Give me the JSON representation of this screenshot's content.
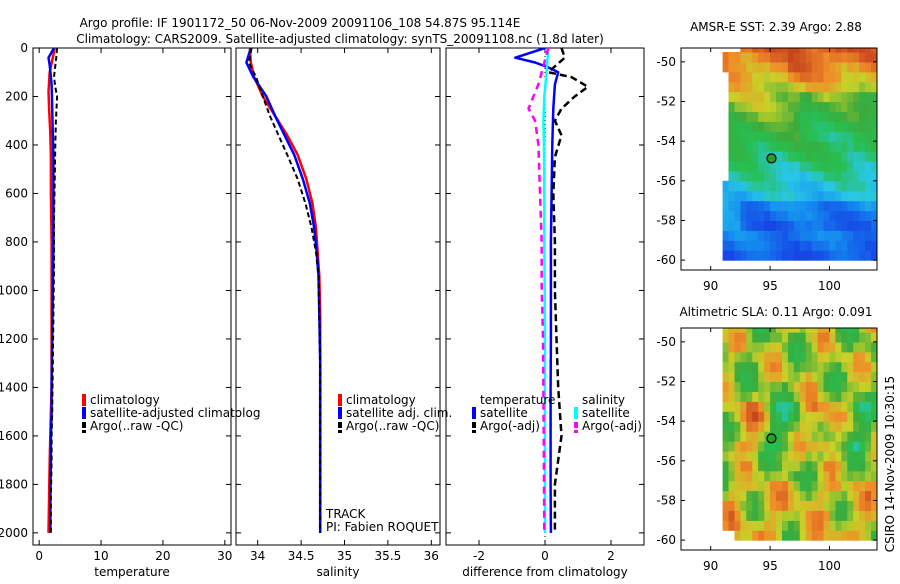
{
  "header": {
    "line1": "Argo profile: IF 1901172_50 06-Nov-2009 20091106_108 54.87S 95.114E",
    "line2": "Climatology: CARS2009. Satellite-adjusted climatology: synTS_20091108.nc (1.8d later)"
  },
  "colors": {
    "climatology": "#ff0000",
    "satellite": "#0000ff",
    "argo": "#000000",
    "satellite_salinity": "#00ffff",
    "argo_adj_salinity": "#ff00ff"
  },
  "footer": {
    "credit": "CSIRO 14-Nov-2009 10:30:15"
  },
  "chart_data": [
    {
      "id": "temperature",
      "type": "line",
      "xlabel": "temperature",
      "ylabel": "",
      "xlim": [
        -1,
        31
      ],
      "ylim": [
        2050,
        0
      ],
      "xticks": [
        0,
        10,
        20,
        30
      ],
      "yticks": [
        0,
        200,
        400,
        600,
        800,
        1000,
        1200,
        1400,
        1600,
        1800,
        2000
      ],
      "series": [
        {
          "name": "climatology",
          "color": "#ff0000",
          "dash": "",
          "width": 2.5,
          "x": [
            2.5,
            2.2,
            1.7,
            1.5,
            1.6,
            1.8,
            1.9,
            1.9,
            2.0,
            2.0,
            2.0,
            2.0,
            1.9,
            1.8,
            1.7,
            1.6,
            1.5
          ],
          "y": [
            0,
            40,
            100,
            180,
            250,
            350,
            450,
            600,
            800,
            1000,
            1200,
            1400,
            1500,
            1600,
            1700,
            1850,
            2000
          ]
        },
        {
          "name": "satellite-adjusted climatology",
          "color": "#0000ff",
          "dash": "",
          "width": 2.5,
          "x": [
            2.4,
            1.5,
            1.7,
            2.0,
            2.1,
            2.2,
            2.3,
            2.3,
            2.3,
            2.2,
            2.1,
            2.0,
            2.0,
            1.9,
            1.9,
            1.8,
            1.8
          ],
          "y": [
            0,
            40,
            70,
            150,
            250,
            350,
            450,
            600,
            800,
            1000,
            1200,
            1400,
            1500,
            1600,
            1700,
            1850,
            2000
          ]
        },
        {
          "name": "Argo(..raw -QC)",
          "color": "#000000",
          "dash": "5,3",
          "width": 2,
          "x": [
            2.9,
            2.8,
            2.4,
            2.6,
            2.9,
            2.7,
            2.6,
            2.5,
            2.4,
            2.4,
            2.3,
            2.2,
            2.1,
            2.0,
            2.0,
            1.9,
            1.9
          ],
          "y": [
            0,
            30,
            120,
            160,
            200,
            300,
            400,
            550,
            700,
            900,
            1100,
            1300,
            1500,
            1600,
            1700,
            1850,
            2000
          ]
        }
      ],
      "legend": [
        "climatology",
        "satellite-adjusted climatolog",
        "Argo(..raw -QC)"
      ]
    },
    {
      "id": "salinity",
      "type": "line",
      "xlabel": "salinity",
      "ylabel": "",
      "xlim": [
        33.75,
        36.1
      ],
      "ylim": [
        2050,
        0
      ],
      "xticks": [
        34,
        34.5,
        35,
        35.5,
        36
      ],
      "xtick_labels": [
        "34",
        "34.5",
        "35",
        "35.5",
        "36"
      ],
      "series": [
        {
          "name": "climatology",
          "color": "#ff0000",
          "dash": "",
          "width": 2.5,
          "x": [
            33.91,
            33.92,
            33.96,
            34.06,
            34.2,
            34.34,
            34.46,
            34.56,
            34.63,
            34.67,
            34.69,
            34.71,
            34.72,
            34.72,
            34.72,
            34.72,
            34.72
          ],
          "y": [
            0,
            60,
            120,
            200,
            280,
            360,
            440,
            540,
            640,
            740,
            840,
            940,
            1100,
            1300,
            1500,
            1800,
            2000
          ]
        },
        {
          "name": "satellite adj. clim.",
          "color": "#0000ff",
          "dash": "",
          "width": 2.5,
          "x": [
            33.92,
            33.87,
            33.95,
            34.1,
            34.2,
            34.31,
            34.42,
            34.52,
            34.6,
            34.65,
            34.68,
            34.7,
            34.71,
            34.72,
            34.72,
            34.72,
            34.72
          ],
          "y": [
            0,
            60,
            120,
            200,
            280,
            360,
            440,
            540,
            640,
            740,
            840,
            940,
            1100,
            1300,
            1500,
            1800,
            2000
          ]
        },
        {
          "name": "Argo(..raw -QC)",
          "color": "#000000",
          "dash": "5,3",
          "width": 2,
          "x": [
            33.93,
            33.9,
            33.98,
            34.06,
            34.14,
            34.24,
            34.34,
            34.46,
            34.55,
            34.62,
            34.67,
            34.7,
            34.71,
            34.72,
            34.72,
            34.72,
            34.72
          ],
          "y": [
            0,
            60,
            120,
            200,
            280,
            360,
            440,
            540,
            640,
            740,
            840,
            940,
            1100,
            1300,
            1500,
            1800,
            2000
          ]
        }
      ],
      "legend": [
        "climatology",
        "satellite adj. clim.",
        "Argo(..raw -QC)"
      ],
      "annotations": [
        "TRACK",
        "PI: Fabien ROQUET"
      ]
    },
    {
      "id": "difference",
      "type": "line",
      "xlabel": "difference from climatology",
      "ylabel": "",
      "xlim": [
        -3.0,
        3.0
      ],
      "ylim": [
        2050,
        0
      ],
      "xticks": [
        -2,
        0,
        2
      ],
      "series": [
        {
          "name": "temperature satellite",
          "color": "#0000ff",
          "dash": "",
          "width": 2.5,
          "x": [
            0,
            -0.9,
            -0.3,
            0.1,
            0.4,
            0.3,
            0.25,
            0.22,
            0.2,
            0.18,
            0.18,
            0.18,
            0.17,
            0.17,
            0.17,
            0.18
          ],
          "y": [
            0,
            40,
            60,
            80,
            100,
            150,
            250,
            400,
            600,
            800,
            1000,
            1200,
            1400,
            1600,
            1800,
            2000
          ]
        },
        {
          "name": "temperature Argo(-adj)",
          "color": "#000000",
          "dash": "7,4",
          "width": 2.5,
          "x": [
            0.5,
            0.6,
            0.1,
            0.8,
            1.3,
            0.9,
            0.5,
            0.3,
            0.5,
            0.3,
            0.25,
            0.3,
            0.3,
            0.35,
            0.4,
            0.5,
            0.3,
            0.3
          ],
          "y": [
            0,
            40,
            100,
            120,
            160,
            200,
            250,
            300,
            360,
            450,
            600,
            800,
            1000,
            1200,
            1400,
            1600,
            1800,
            2000
          ]
        },
        {
          "name": "salinity satellite",
          "color": "#00ffff",
          "dash": "",
          "width": 2.5,
          "x": [
            0.1,
            0.05,
            -0.02,
            -0.05,
            -0.03,
            -0.02,
            -0.02,
            -0.01,
            0,
            0,
            0,
            0,
            0,
            0,
            0,
            0
          ],
          "y": [
            0,
            100,
            200,
            300,
            400,
            600,
            800,
            1000,
            1200,
            1400,
            1500,
            1600,
            1700,
            1800,
            1900,
            2000
          ]
        },
        {
          "name": "salinity Argo(-adj)",
          "color": "#ff00ff",
          "dash": "7,5",
          "width": 2.5,
          "x": [
            0.1,
            -0.2,
            -0.5,
            -0.3,
            -0.2,
            -0.15,
            -0.1,
            -0.1,
            -0.08,
            -0.06,
            -0.05,
            -0.04,
            -0.03,
            -0.02
          ],
          "y": [
            0,
            150,
            250,
            300,
            400,
            600,
            800,
            1000,
            1100,
            1200,
            1400,
            1600,
            1800,
            2000
          ]
        }
      ],
      "legend": [
        {
          "heading": "temperature",
          "items": [
            "satellite",
            "Argo(-adj)"
          ]
        },
        {
          "heading": "salinity",
          "items": [
            "satellite",
            "Argo(-adj)"
          ]
        }
      ]
    },
    {
      "id": "sst_map",
      "type": "heatmap",
      "title": "AMSR-E SST: 2.39 Argo: 2.88",
      "xlim": [
        87.5,
        104
      ],
      "ylim": [
        -60.5,
        -49.3
      ],
      "xticks": [
        90,
        95,
        100
      ],
      "yticks": [
        -50,
        -52,
        -54,
        -56,
        -58,
        -60
      ],
      "marker": {
        "lon": 95.114,
        "lat": -54.87
      },
      "field": "temperature"
    },
    {
      "id": "sla_map",
      "type": "heatmap",
      "title": "Altimetric SLA: 0.11 Argo: 0.091",
      "xlim": [
        87.5,
        104
      ],
      "ylim": [
        -60.5,
        -49.3
      ],
      "xticks": [
        90,
        95,
        100
      ],
      "yticks": [
        -50,
        -52,
        -54,
        -56,
        -58,
        -60
      ],
      "marker": {
        "lon": 95.114,
        "lat": -54.87
      },
      "field": "sea_level_anomaly"
    }
  ]
}
